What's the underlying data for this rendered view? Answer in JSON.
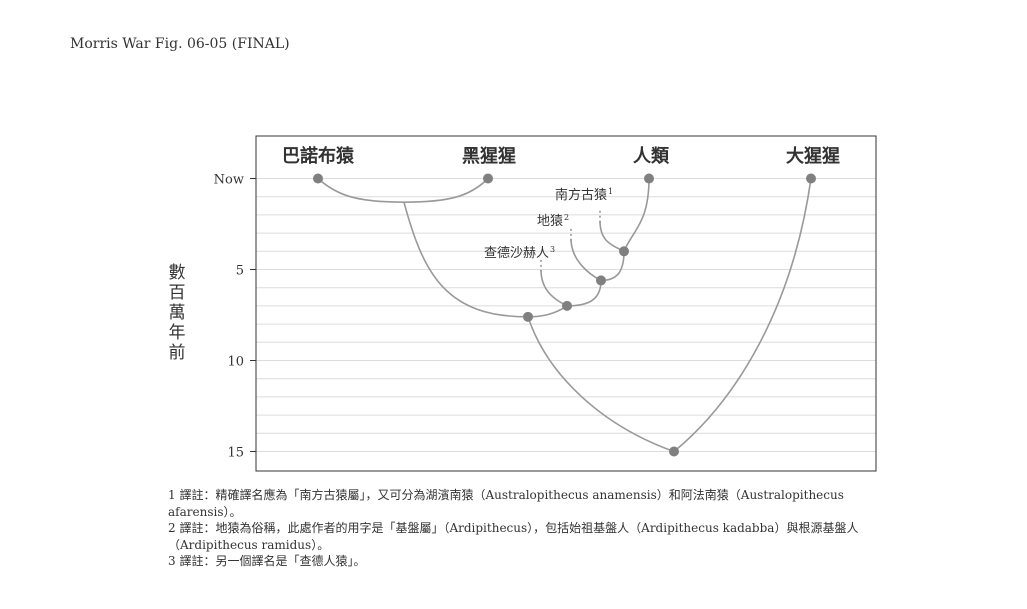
{
  "header": {
    "figure_label": "Morris War Fig. 06-05 (FINAL)"
  },
  "chart_data": {
    "type": "tree",
    "ylabel": "數百萬年前",
    "y_axis": {
      "ticks": [
        {
          "value": 0,
          "label": "Now"
        },
        {
          "value": 5,
          "label": "5"
        },
        {
          "value": 10,
          "label": "10"
        },
        {
          "value": 15,
          "label": "15"
        }
      ],
      "range": [
        -2.3,
        16
      ],
      "minor_gridlines_every": 1,
      "grid": true
    },
    "species": [
      {
        "id": "bonobo",
        "label": "巴諾布猿",
        "time": 0
      },
      {
        "id": "chimp",
        "label": "黑猩猩",
        "time": 0
      },
      {
        "id": "human",
        "label": "人類",
        "time": 0
      },
      {
        "id": "gorilla",
        "label": "大猩猩",
        "time": 0
      }
    ],
    "fossil_lineages": [
      {
        "id": "australopith",
        "label": "南方古猿",
        "note": "1",
        "start_time": 2.1
      },
      {
        "id": "ardipith",
        "label": "地猿",
        "note": "2",
        "start_time": 3.1
      },
      {
        "id": "sahelanthropus",
        "label": "查德沙赫人",
        "note": "3",
        "start_time": 4.8
      }
    ],
    "nodes": [
      {
        "id": "pan",
        "time": 1.3
      },
      {
        "id": "hominin_aus",
        "time": 4.0
      },
      {
        "id": "hominin_ardi",
        "time": 5.6
      },
      {
        "id": "hominin_sahel",
        "time": 7.0
      },
      {
        "id": "human_chimp",
        "time": 7.6
      },
      {
        "id": "root",
        "time": 15.0
      }
    ]
  },
  "notes": [
    "1 譯註：精確譯名應為「南方古猿屬」，又可分為湖濱南猿（Australopithecus anamensis）和阿法南猿（Australopithecus afarensis）。",
    "2 譯註：地猿為俗稱，此處作者的用字是「基盤屬」（Ardipithecus），包括始祖基盤人（Ardipithecus kadabba）與根源基盤人（Ardipithecus ramidus）。",
    "3 譯註：另一個譯名是「查德人猿」。"
  ],
  "colors": {
    "branch": "#999999",
    "node": "#808080",
    "grid": "#dcdcdc",
    "frame": "#333333",
    "text": "#333333"
  }
}
